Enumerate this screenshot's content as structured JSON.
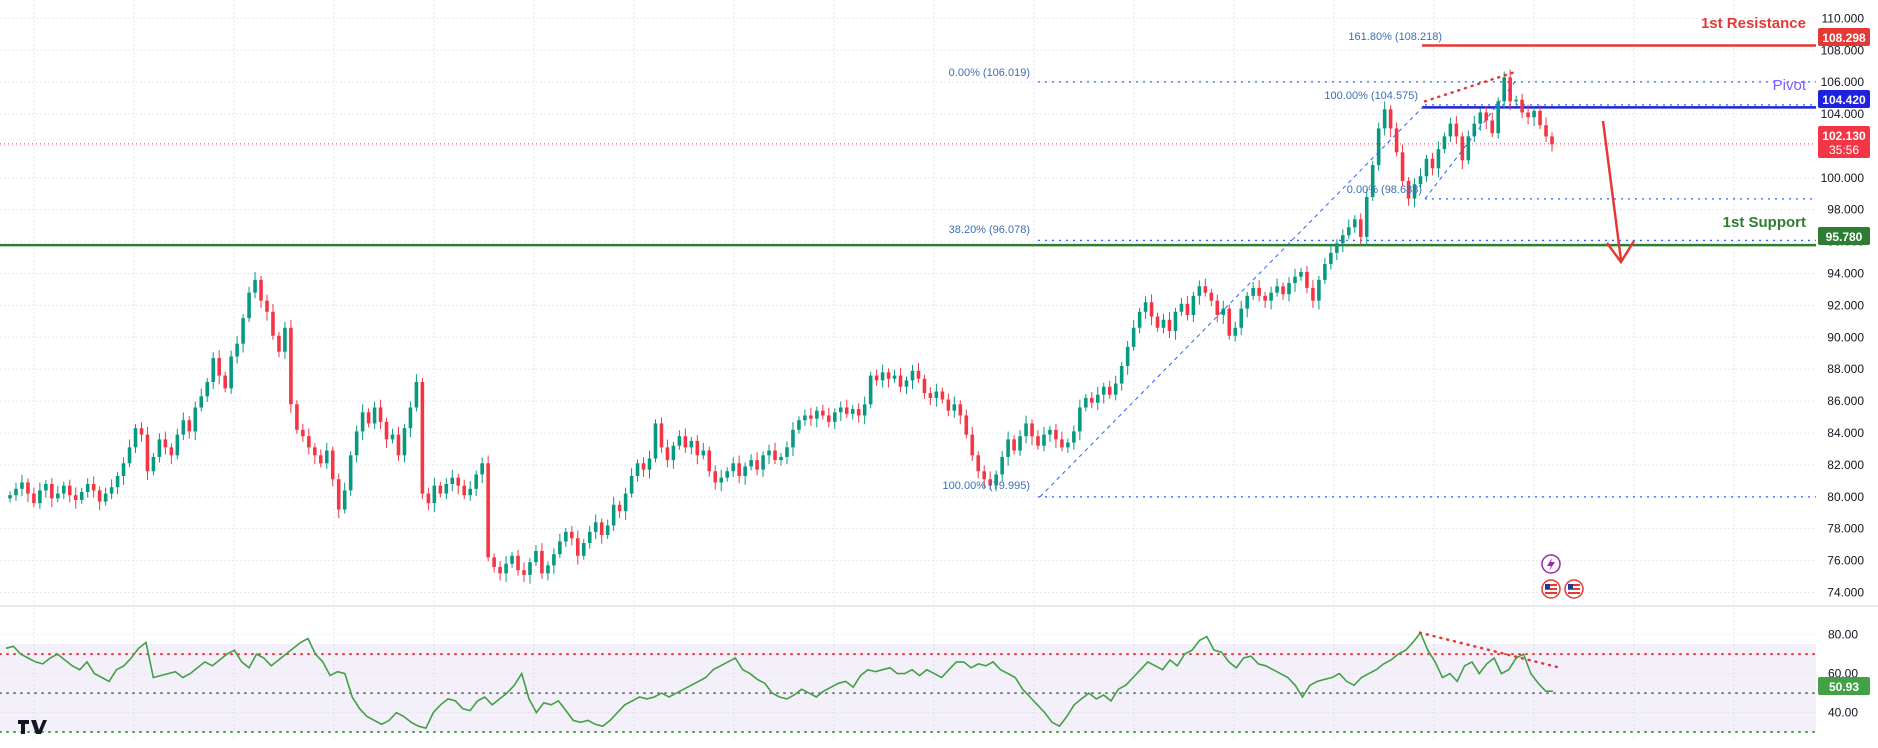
{
  "chart_data": [
    {
      "type": "candlestick",
      "title": "",
      "y_axis_ticks": [
        "110.000",
        "108.000",
        "106.000",
        "104.000",
        "102.000",
        "100.000",
        "98.000",
        "96.000",
        "94.000",
        "92.000",
        "90.000",
        "88.000",
        "86.000",
        "84.000",
        "82.000",
        "80.000",
        "78.000",
        "76.000",
        "74.000"
      ],
      "ylim": [
        72.9,
        110.4
      ],
      "grid": true,
      "up_color": "#089981",
      "down_color": "#f23645",
      "candles_close": [
        80.1,
        80.5,
        80.9,
        80.2,
        79.6,
        80.4,
        80.8,
        79.9,
        80.2,
        80.7,
        80.1,
        79.8,
        80.3,
        80.8,
        80.4,
        79.7,
        80.2,
        80.6,
        81.3,
        82.1,
        83.1,
        84.3,
        83.9,
        81.6,
        82.5,
        83.6,
        83.1,
        82.6,
        83.9,
        84.8,
        84.1,
        85.6,
        86.3,
        87.2,
        88.7,
        87.6,
        86.8,
        88.8,
        89.6,
        91.2,
        92.8,
        93.6,
        92.3,
        91.6,
        90.1,
        89.1,
        90.6,
        85.8,
        84.2,
        83.8,
        83.1,
        82.6,
        82.1,
        82.9,
        81.1,
        79.2,
        80.4,
        82.6,
        84.1,
        85.3,
        84.6,
        85.6,
        84.7,
        83.6,
        83.9,
        82.6,
        84.3,
        85.6,
        87.2,
        80.2,
        79.6,
        80.7,
        80.2,
        80.8,
        81.2,
        80.7,
        80.1,
        80.5,
        81.4,
        82.1,
        76.2,
        75.6,
        75.2,
        75.8,
        76.3,
        75.4,
        75.1,
        75.9,
        76.6,
        75.2,
        75.7,
        76.4,
        77.2,
        77.8,
        77.4,
        76.3,
        77.1,
        77.8,
        78.4,
        77.6,
        78.2,
        79.5,
        79.1,
        80.2,
        81.3,
        82.1,
        81.7,
        82.4,
        84.6,
        83.1,
        82.3,
        83.2,
        83.8,
        83.1,
        83.5,
        82.6,
        82.9,
        81.6,
        80.9,
        81.2,
        81.6,
        82.1,
        81.3,
        81.9,
        82.3,
        81.7,
        82.6,
        82.9,
        82.3,
        82.5,
        83.1,
        84.2,
        84.8,
        85.1,
        84.9,
        85.4,
        85.1,
        84.7,
        85.3,
        85.6,
        85.2,
        85.5,
        85.1,
        85.8,
        87.6,
        87.3,
        87.8,
        87.4,
        87.6,
        86.9,
        87.3,
        87.9,
        87.4,
        86.5,
        86.2,
        86.6,
        86.1,
        85.4,
        85.8,
        85.1,
        83.9,
        82.6,
        81.6,
        81.1,
        80.7,
        81.4,
        82.5,
        83.6,
        82.9,
        83.8,
        84.6,
        83.8,
        83.2,
        83.9,
        84.2,
        83.6,
        83.1,
        83.4,
        84.1,
        85.6,
        86.2,
        85.9,
        86.4,
        86.9,
        86.4,
        87.1,
        88.2,
        89.4,
        90.6,
        91.6,
        92.2,
        91.3,
        90.6,
        91.1,
        90.4,
        91.6,
        92.1,
        91.4,
        92.6,
        93.2,
        92.8,
        92.3,
        91.4,
        91.8,
        90.1,
        90.6,
        91.8,
        92.6,
        93.1,
        92.6,
        92.3,
        92.8,
        93.2,
        92.7,
        93.4,
        93.8,
        94.1,
        93.1,
        92.3,
        93.6,
        94.6,
        95.3,
        95.9,
        96.4,
        96.9,
        97.4,
        96.3,
        98.8,
        100.8,
        103.1,
        104.3,
        103.1,
        101.6,
        99.8,
        98.7,
        99.6,
        100.1,
        101.2,
        100.6,
        101.8,
        102.6,
        103.4,
        102.6,
        101.1,
        102.6,
        103.4,
        104.1,
        103.6,
        102.8,
        104.8,
        106.3,
        104.8,
        104.9,
        104.1,
        103.8,
        104.2,
        103.3,
        102.6,
        102.1
      ]
    },
    {
      "type": "line",
      "title": "",
      "y_axis_ticks": [
        "80.00",
        "60.00",
        "40.00"
      ],
      "ylim": [
        29,
        87
      ],
      "reference_levels": [
        70,
        50,
        30
      ],
      "current_value": 50.93,
      "series": [
        {
          "name": "",
          "color": "#43a047",
          "values": [
            73,
            74,
            70,
            68,
            66,
            65,
            68,
            70,
            67,
            64,
            62,
            66,
            60,
            58,
            56,
            62,
            64,
            68,
            73,
            76,
            58,
            59,
            60,
            61,
            58,
            60,
            63,
            66,
            64,
            67,
            70,
            72,
            66,
            63,
            70,
            68,
            64,
            67,
            70,
            73,
            76,
            78,
            70,
            66,
            59,
            61,
            60,
            48,
            42,
            38,
            36,
            34,
            36,
            40,
            38,
            35,
            33,
            32,
            40,
            44,
            47,
            46,
            42,
            41,
            46,
            48,
            44,
            47,
            50,
            54,
            60,
            47,
            40,
            45,
            44,
            46,
            41,
            36,
            35,
            36,
            34,
            33,
            36,
            40,
            44,
            46,
            48,
            47,
            48,
            50,
            48,
            50,
            52,
            54,
            56,
            58,
            62,
            64,
            66,
            68,
            62,
            60,
            57,
            55,
            50,
            48,
            47,
            49,
            52,
            50,
            48,
            51,
            53,
            55,
            56,
            53,
            59,
            62,
            61,
            62,
            63,
            60,
            60,
            62,
            59,
            62,
            60,
            58,
            62,
            66,
            66,
            63,
            65,
            64,
            66,
            62,
            60,
            58,
            52,
            48,
            44,
            40,
            35,
            33,
            38,
            44,
            47,
            50,
            47,
            49,
            46,
            52,
            54,
            58,
            62,
            66,
            64,
            62,
            67,
            64,
            70,
            72,
            77,
            79,
            72,
            71,
            66,
            63,
            68,
            69,
            65,
            64,
            62,
            60,
            58,
            54,
            48,
            54,
            56,
            57,
            58,
            60,
            56,
            54,
            58,
            60,
            62,
            65,
            67,
            70,
            72,
            76,
            81,
            72,
            66,
            58,
            60,
            56,
            64,
            66,
            60,
            65,
            68,
            60,
            62,
            68,
            70,
            60,
            55,
            51,
            50.9
          ]
        }
      ]
    }
  ],
  "levels": {
    "resistance": {
      "label": "1st Resistance",
      "price": "108.298",
      "value": 108.298,
      "color": "#e53935"
    },
    "pivot": {
      "label": "Pivot",
      "price": "104.420",
      "value": 104.42,
      "color": "#1e22e0"
    },
    "support": {
      "label": "1st Support",
      "price": "95.780",
      "value": 95.78,
      "color": "#2e7d32"
    },
    "last_price": {
      "price": "102.130",
      "countdown": "35:56",
      "value": 102.13,
      "color": "#f23645"
    },
    "rsi_value": {
      "label": "50.93",
      "color": "#43a047"
    }
  },
  "fib_labels": {
    "f1618": {
      "text": "161.80% (108.218)",
      "value": 108.218
    },
    "f0_upper": {
      "text": "0.00% (106.019)",
      "value": 106.019
    },
    "f100_upper": {
      "text": "100.00% (104.575)",
      "value": 104.575
    },
    "f0_lower": {
      "text": "0.00% (98.683)",
      "value": 98.683
    },
    "f382": {
      "text": "38.20% (96.078)",
      "value": 96.078
    },
    "f100_lower": {
      "text": "100.00% (79.995)",
      "value": 79.995
    }
  },
  "icons": {
    "logo": "tradingview-logo-icon",
    "event": "lightning-event-icon",
    "flag": "us-flag-icon"
  }
}
